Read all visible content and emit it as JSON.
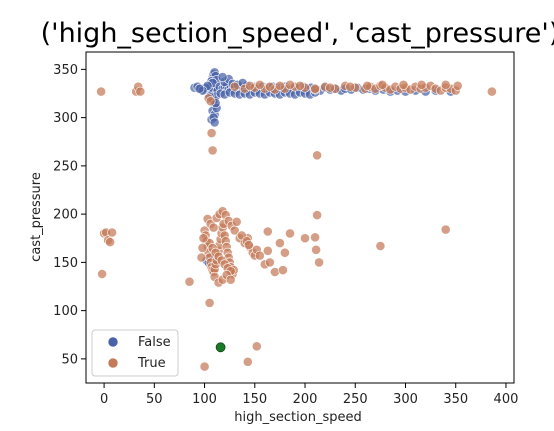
{
  "chart_data": {
    "type": "scatter",
    "title": "('high_section_speed', 'cast_pressure')",
    "xlabel": "high_section_speed",
    "ylabel": "cast_pressure",
    "xlim": [
      -18,
      408
    ],
    "ylim": [
      25,
      368
    ],
    "xticks": [
      0,
      50,
      100,
      150,
      200,
      250,
      300,
      350,
      400
    ],
    "yticks": [
      50,
      100,
      150,
      200,
      250,
      300,
      350
    ],
    "grid": false,
    "legend_position": "lower-left",
    "series": [
      {
        "name": "False",
        "color": "#4a62a8",
        "edge": "#ffffff",
        "points": [
          [
            105,
            331
          ],
          [
            106,
            327
          ],
          [
            108,
            332
          ],
          [
            110,
            330
          ],
          [
            112,
            333
          ],
          [
            107,
            326
          ],
          [
            109,
            329
          ],
          [
            111,
            331
          ],
          [
            113,
            328
          ],
          [
            104,
            330
          ],
          [
            108,
            341
          ],
          [
            109,
            345
          ],
          [
            110,
            347
          ],
          [
            111,
            343
          ],
          [
            107,
            338
          ],
          [
            112,
            339
          ],
          [
            108,
            336
          ],
          [
            110,
            313
          ],
          [
            109,
            318
          ],
          [
            111,
            322
          ],
          [
            108,
            307
          ],
          [
            110,
            303
          ],
          [
            112,
            310
          ],
          [
            107,
            298
          ],
          [
            109,
            300
          ],
          [
            111,
            315
          ],
          [
            110,
            295
          ],
          [
            105,
            322
          ],
          [
            90,
            331
          ],
          [
            93,
            332
          ],
          [
            96,
            330
          ],
          [
            99,
            329
          ],
          [
            101,
            331
          ],
          [
            103,
            333
          ],
          [
            98,
            328
          ],
          [
            95,
            330
          ],
          [
            115,
            332
          ],
          [
            118,
            330
          ],
          [
            120,
            331
          ],
          [
            122,
            333
          ],
          [
            124,
            329
          ],
          [
            126,
            331
          ],
          [
            128,
            330
          ],
          [
            130,
            332
          ],
          [
            132,
            328
          ],
          [
            134,
            331
          ],
          [
            136,
            329
          ],
          [
            138,
            331
          ],
          [
            140,
            330
          ],
          [
            142,
            333
          ],
          [
            144,
            329
          ],
          [
            146,
            331
          ],
          [
            148,
            330
          ],
          [
            150,
            332
          ],
          [
            152,
            329
          ],
          [
            154,
            331
          ],
          [
            156,
            330
          ],
          [
            158,
            332
          ],
          [
            160,
            328
          ],
          [
            162,
            330
          ],
          [
            164,
            331
          ],
          [
            166,
            329
          ],
          [
            168,
            332
          ],
          [
            170,
            330
          ],
          [
            172,
            331
          ],
          [
            174,
            329
          ],
          [
            176,
            331
          ],
          [
            178,
            330
          ],
          [
            180,
            332
          ],
          [
            183,
            330
          ],
          [
            186,
            329
          ],
          [
            190,
            331
          ],
          [
            194,
            330
          ],
          [
            198,
            332
          ],
          [
            202,
            329
          ],
          [
            206,
            331
          ],
          [
            210,
            330
          ],
          [
            215,
            328
          ],
          [
            220,
            331
          ],
          [
            225,
            329
          ],
          [
            230,
            330
          ],
          [
            236,
            328
          ],
          [
            240,
            330
          ],
          [
            246,
            329
          ],
          [
            252,
            331
          ],
          [
            258,
            329
          ],
          [
            264,
            330
          ],
          [
            270,
            328
          ],
          [
            278,
            329
          ],
          [
            285,
            327
          ],
          [
            292,
            328
          ],
          [
            300,
            327
          ],
          [
            310,
            328
          ],
          [
            320,
            327
          ],
          [
            330,
            328
          ],
          [
            345,
            327
          ],
          [
            116,
            325
          ],
          [
            120,
            324
          ],
          [
            125,
            326
          ],
          [
            130,
            325
          ],
          [
            135,
            324
          ],
          [
            140,
            325
          ],
          [
            145,
            324
          ],
          [
            150,
            326
          ],
          [
            155,
            325
          ],
          [
            160,
            324
          ],
          [
            165,
            326
          ],
          [
            170,
            325
          ],
          [
            175,
            324
          ],
          [
            180,
            326
          ],
          [
            185,
            325
          ],
          [
            190,
            324
          ],
          [
            195,
            326
          ],
          [
            200,
            325
          ],
          [
            205,
            324
          ],
          [
            210,
            326
          ],
          [
            120,
            337
          ],
          [
            124,
            340
          ],
          [
            128,
            335
          ],
          [
            133,
            334
          ],
          [
            138,
            336
          ],
          [
            118,
            342
          ],
          [
            102,
            152
          ],
          [
            104,
            150
          ],
          [
            106,
            155
          ],
          [
            108,
            148
          ],
          [
            110,
            153
          ]
        ]
      },
      {
        "name": "True",
        "color": "#c47a57",
        "edge": "#ffffff",
        "points": [
          [
            -3,
            327
          ],
          [
            -2,
            138
          ],
          [
            0,
            180
          ],
          [
            2,
            181
          ],
          [
            4,
            173
          ],
          [
            6,
            171
          ],
          [
            8,
            181
          ],
          [
            32,
            327
          ],
          [
            34,
            332
          ],
          [
            36,
            327
          ],
          [
            107,
            284
          ],
          [
            108,
            266
          ],
          [
            104,
            320
          ],
          [
            106,
            317
          ],
          [
            150,
            331
          ],
          [
            160,
            330
          ],
          [
            170,
            329
          ],
          [
            180,
            330
          ],
          [
            190,
            332
          ],
          [
            200,
            331
          ],
          [
            210,
            329
          ],
          [
            220,
            332
          ],
          [
            230,
            330
          ],
          [
            240,
            333
          ],
          [
            250,
            331
          ],
          [
            260,
            330
          ],
          [
            265,
            332
          ],
          [
            270,
            330
          ],
          [
            275,
            333
          ],
          [
            280,
            331
          ],
          [
            285,
            329
          ],
          [
            290,
            332
          ],
          [
            295,
            330
          ],
          [
            300,
            331
          ],
          [
            305,
            329
          ],
          [
            310,
            332
          ],
          [
            315,
            330
          ],
          [
            320,
            331
          ],
          [
            325,
            333
          ],
          [
            330,
            330
          ],
          [
            335,
            328
          ],
          [
            340,
            331
          ],
          [
            345,
            330
          ],
          [
            350,
            328
          ],
          [
            352,
            333
          ],
          [
            386,
            327
          ],
          [
            210,
            330
          ],
          [
            225,
            331
          ],
          [
            245,
            332
          ],
          [
            262,
            333
          ],
          [
            277,
            334
          ],
          [
            298,
            334
          ],
          [
            316,
            334
          ],
          [
            340,
            334
          ],
          [
            130,
            332
          ],
          [
            140,
            330
          ],
          [
            145,
            333
          ],
          [
            155,
            334
          ],
          [
            165,
            332
          ],
          [
            175,
            333
          ],
          [
            185,
            334
          ],
          [
            195,
            333
          ],
          [
            212,
            261
          ],
          [
            100,
            183
          ],
          [
            101,
            178
          ],
          [
            102,
            172
          ],
          [
            103,
            166
          ],
          [
            104,
            160
          ],
          [
            105,
            155
          ],
          [
            106,
            150
          ],
          [
            107,
            145
          ],
          [
            108,
            142
          ],
          [
            109,
            140
          ],
          [
            110,
            143
          ],
          [
            111,
            148
          ],
          [
            112,
            152
          ],
          [
            113,
            157
          ],
          [
            114,
            162
          ],
          [
            115,
            168
          ],
          [
            116,
            174
          ],
          [
            117,
            180
          ],
          [
            118,
            186
          ],
          [
            119,
            190
          ],
          [
            120,
            178
          ],
          [
            121,
            172
          ],
          [
            122,
            166
          ],
          [
            123,
            160
          ],
          [
            124,
            155
          ],
          [
            125,
            150
          ],
          [
            126,
            145
          ],
          [
            127,
            140
          ],
          [
            128,
            138
          ],
          [
            129,
            142
          ],
          [
            103,
            195
          ],
          [
            106,
            190
          ],
          [
            109,
            186
          ],
          [
            112,
            196
          ],
          [
            115,
            200
          ],
          [
            118,
            203
          ],
          [
            121,
            199
          ],
          [
            124,
            193
          ],
          [
            127,
            188
          ],
          [
            130,
            183
          ],
          [
            105,
            170
          ],
          [
            108,
            165
          ],
          [
            111,
            160
          ],
          [
            114,
            156
          ],
          [
            117,
            152
          ],
          [
            120,
            148
          ],
          [
            123,
            144
          ],
          [
            126,
            141
          ],
          [
            110,
            135
          ],
          [
            114,
            129
          ],
          [
            118,
            132
          ],
          [
            122,
            137
          ],
          [
            126,
            132
          ],
          [
            97,
            155
          ],
          [
            98,
            165
          ],
          [
            99,
            175
          ],
          [
            135,
            175
          ],
          [
            140,
            170
          ],
          [
            143,
            175
          ],
          [
            145,
            166
          ],
          [
            148,
            160
          ],
          [
            150,
            157
          ],
          [
            152,
            163
          ],
          [
            155,
            157
          ],
          [
            132,
            192
          ],
          [
            137,
            178
          ],
          [
            142,
            172
          ],
          [
            144,
            168
          ],
          [
            160,
            148
          ],
          [
            165,
            150
          ],
          [
            170,
            140
          ],
          [
            175,
            170
          ],
          [
            180,
            160
          ],
          [
            185,
            180
          ],
          [
            200,
            175
          ],
          [
            210,
            176
          ],
          [
            212,
            199
          ],
          [
            214,
            150
          ],
          [
            211,
            163
          ],
          [
            163,
            182
          ],
          [
            163,
            162
          ],
          [
            178,
            142
          ],
          [
            275,
            167
          ],
          [
            340,
            184
          ],
          [
            85,
            130
          ],
          [
            100,
            42
          ],
          [
            143,
            47
          ],
          [
            152,
            63
          ],
          [
            105,
            108
          ]
        ]
      },
      {
        "name": "",
        "color": "#1a7a2a",
        "edge": "#0a4a14",
        "points": [
          [
            116,
            62
          ]
        ]
      }
    ]
  }
}
